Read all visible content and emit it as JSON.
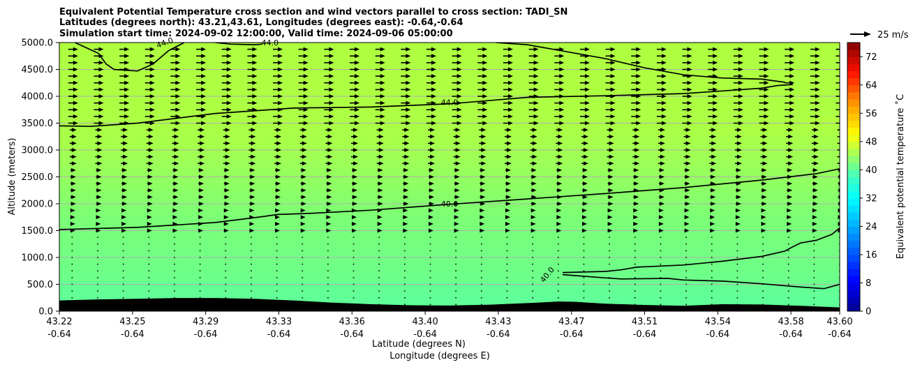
{
  "chart_data": {
    "type": "contourf",
    "title_lines": [
      "Equivalent Potential Temperature cross section and wind vectors parallel to cross section: TADI_SN",
      "Latitudes (degrees north): 43.21,43.61, Longitudes (degrees east): -0.64,-0.64",
      "Simulation start time: 2024-09-02 12:00:00, Valid time: 2024-09-06 05:00:00"
    ],
    "xlabel_line1": "Latitude (degrees N)",
    "xlabel_line2": "Longitude (degrees E)",
    "ylabel": "Altitude (meters)",
    "ylim": [
      0,
      5000
    ],
    "y_ticks": [
      "0.0",
      "500.0",
      "1000.0",
      "1500.0",
      "2000.0",
      "2500.0",
      "3000.0",
      "3500.0",
      "4000.0",
      "4500.0",
      "5000.0"
    ],
    "y_tick_values": [
      0,
      500,
      1000,
      1500,
      2000,
      2500,
      3000,
      3500,
      4000,
      4500,
      5000
    ],
    "x_ticks_lat": [
      "43.22",
      "43.25",
      "43.29",
      "43.33",
      "43.36",
      "43.40",
      "43.43",
      "43.47",
      "43.51",
      "43.54",
      "43.58",
      "43.60"
    ],
    "x_ticks_lon": [
      "-0.64",
      "-0.64",
      "-0.64",
      "-0.64",
      "-0.64",
      "-0.64",
      "-0.64",
      "-0.64",
      "-0.64",
      "-0.64",
      "-0.64",
      "-0.64"
    ],
    "x_tick_positions": [
      0,
      0.0938,
      0.1875,
      0.2813,
      0.375,
      0.4688,
      0.5625,
      0.6563,
      0.75,
      0.8438,
      0.9375,
      1.0
    ],
    "grid": "horizontal",
    "colorbar": {
      "label": "Equivalent potential temperature ˚C",
      "min": 0,
      "max": 76,
      "ticks": [
        "0",
        "8",
        "16",
        "24",
        "32",
        "40",
        "48",
        "56",
        "64",
        "72"
      ],
      "tick_values": [
        0,
        8,
        16,
        24,
        32,
        40,
        48,
        56,
        64,
        72
      ],
      "colormap": "jet-like"
    },
    "quiver_key": {
      "label": "25 m/s"
    },
    "contour_labels": [
      "44.0",
      "40.0",
      "40.0",
      "44.0",
      "44.0"
    ],
    "terrain": [
      [
        0,
        200
      ],
      [
        0.05,
        220
      ],
      [
        0.1,
        230
      ],
      [
        0.15,
        245
      ],
      [
        0.2,
        245
      ],
      [
        0.25,
        230
      ],
      [
        0.3,
        200
      ],
      [
        0.35,
        160
      ],
      [
        0.4,
        130
      ],
      [
        0.45,
        110
      ],
      [
        0.5,
        105
      ],
      [
        0.55,
        120
      ],
      [
        0.6,
        150
      ],
      [
        0.64,
        180
      ],
      [
        0.66,
        175
      ],
      [
        0.7,
        140
      ],
      [
        0.75,
        115
      ],
      [
        0.8,
        100
      ],
      [
        0.85,
        130
      ],
      [
        0.9,
        125
      ],
      [
        0.95,
        100
      ],
      [
        1.0,
        70
      ]
    ],
    "contour_40_main": [
      [
        0,
        1520
      ],
      [
        0.1,
        1560
      ],
      [
        0.2,
        1650
      ],
      [
        0.25,
        1740
      ],
      [
        0.28,
        1800
      ],
      [
        0.32,
        1820
      ],
      [
        0.4,
        1880
      ],
      [
        0.5,
        1990
      ],
      [
        0.6,
        2090
      ],
      [
        0.7,
        2190
      ],
      [
        0.8,
        2300
      ],
      [
        0.9,
        2440
      ],
      [
        0.97,
        2560
      ],
      [
        1.0,
        2650
      ]
    ],
    "contour_40_low_upper": [
      [
        0.645,
        720
      ],
      [
        0.7,
        740
      ],
      [
        0.72,
        770
      ],
      [
        0.74,
        820
      ],
      [
        0.8,
        860
      ],
      [
        0.85,
        930
      ],
      [
        0.9,
        1020
      ],
      [
        0.93,
        1120
      ],
      [
        0.94,
        1200
      ],
      [
        0.95,
        1270
      ],
      [
        0.97,
        1320
      ],
      [
        0.99,
        1430
      ],
      [
        1.0,
        1550
      ]
    ],
    "contour_40_low_lower": [
      [
        0.645,
        680
      ],
      [
        0.7,
        620
      ],
      [
        0.72,
        600
      ],
      [
        0.78,
        610
      ],
      [
        0.8,
        580
      ],
      [
        0.85,
        560
      ],
      [
        0.9,
        510
      ],
      [
        0.95,
        450
      ],
      [
        0.98,
        420
      ],
      [
        1.0,
        500
      ]
    ],
    "contour_44_main": [
      [
        0,
        3450
      ],
      [
        0.04,
        3440
      ],
      [
        0.1,
        3500
      ],
      [
        0.2,
        3680
      ],
      [
        0.28,
        3760
      ],
      [
        0.3,
        3780
      ],
      [
        0.4,
        3800
      ],
      [
        0.5,
        3860
      ],
      [
        0.55,
        3920
      ],
      [
        0.6,
        3980
      ],
      [
        0.7,
        4010
      ],
      [
        0.8,
        4050
      ],
      [
        0.85,
        4100
      ],
      [
        0.9,
        4150
      ],
      [
        0.92,
        4200
      ],
      [
        0.94,
        4220
      ]
    ],
    "contour_44_top": [
      [
        0.56,
        5000
      ],
      [
        0.6,
        4960
      ],
      [
        0.65,
        4830
      ],
      [
        0.7,
        4700
      ],
      [
        0.75,
        4530
      ],
      [
        0.8,
        4400
      ],
      [
        0.85,
        4340
      ],
      [
        0.9,
        4320
      ],
      [
        0.93,
        4260
      ]
    ],
    "contour_44_upper_left": [
      [
        0.02,
        5000
      ],
      [
        0.05,
        4800
      ],
      [
        0.06,
        4600
      ],
      [
        0.07,
        4500
      ],
      [
        0.1,
        4470
      ],
      [
        0.12,
        4600
      ],
      [
        0.14,
        4850
      ],
      [
        0.16,
        5000
      ]
    ],
    "contour_44_top_small": [
      [
        0.2,
        5000
      ],
      [
        0.22,
        4970
      ],
      [
        0.25,
        4960
      ],
      [
        0.26,
        4970
      ]
    ]
  }
}
